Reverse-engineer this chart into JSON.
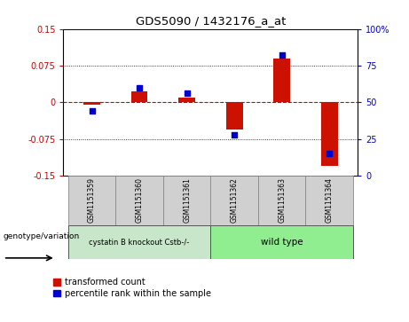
{
  "title": "GDS5090 / 1432176_a_at",
  "samples": [
    "GSM1151359",
    "GSM1151360",
    "GSM1151361",
    "GSM1151362",
    "GSM1151363",
    "GSM1151364"
  ],
  "transformed_count": [
    -0.005,
    0.022,
    0.01,
    -0.055,
    0.09,
    -0.13
  ],
  "percentile_rank": [
    44,
    60,
    56,
    28,
    82,
    15
  ],
  "ylim_left": [
    -0.15,
    0.15
  ],
  "ylim_right": [
    0,
    100
  ],
  "yticks_left": [
    -0.15,
    -0.075,
    0,
    0.075,
    0.15
  ],
  "yticks_right": [
    0,
    25,
    50,
    75,
    100
  ],
  "left_color": "#cc0000",
  "right_color": "#0000cc",
  "bar_color_red": "#cc1100",
  "dot_color_blue": "#0000cc",
  "hline_color": "#cc0000",
  "legend_red_label": "transformed count",
  "legend_blue_label": "percentile rank within the sample",
  "genotype_label": "genotype/variation",
  "group1_label": "cystatin B knockout Cstb-/-",
  "group2_label": "wild type",
  "group1_color": "#c8e6c9",
  "group2_color": "#90ee90",
  "sample_box_color": "#d0d0d0",
  "bar_width": 0.35
}
